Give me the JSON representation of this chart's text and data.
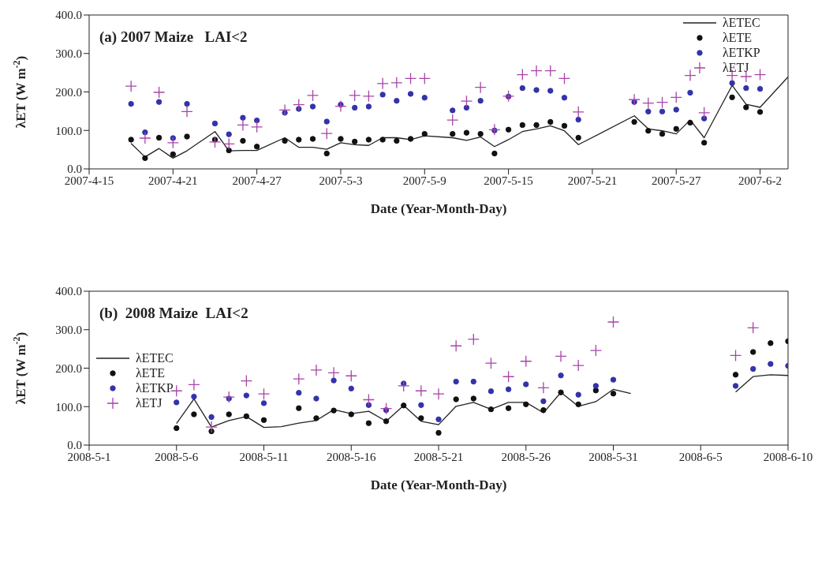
{
  "chart_data": [
    {
      "type": "line",
      "title": "(a) 2007 Maize   LAI<2",
      "xlabel": "Date (Year-Month-Day)",
      "ylabel": "λET (W m$^{-2}$)",
      "xlim": [
        "2007-04-15",
        "2007-06-04"
      ],
      "xticks": [
        {
          "value": "2007-04-15",
          "label": "2007-4-15"
        },
        {
          "value": "2007-04-21",
          "label": "2007-4-21"
        },
        {
          "value": "2007-04-27",
          "label": "2007-4-27"
        },
        {
          "value": "2007-05-03",
          "label": "2007-5-3"
        },
        {
          "value": "2007-05-09",
          "label": "2007-5-9"
        },
        {
          "value": "2007-05-15",
          "label": "2007-5-15"
        },
        {
          "value": "2007-05-21",
          "label": "2007-5-21"
        },
        {
          "value": "2007-05-27",
          "label": "2007-5-27"
        },
        {
          "value": "2007-06-02",
          "label": "2007-6-2"
        }
      ],
      "ylim": [
        0,
        400
      ],
      "yticks": [
        {
          "value": 0,
          "label": "0.0"
        },
        {
          "value": 100,
          "label": "100.0"
        },
        {
          "value": 200,
          "label": "200.0"
        },
        {
          "value": 300,
          "label": "300.0"
        },
        {
          "value": 400,
          "label": "400.0"
        }
      ],
      "grid": false,
      "legend": "top right",
      "series": [
        {
          "name": "λETEC",
          "type": "line",
          "color": "#222222",
          "marker": "none",
          "x": [
            "2007-04-18",
            "2007-04-19",
            "2007-04-20",
            "2007-04-21",
            "2007-04-22",
            "2007-04-24",
            "2007-04-25",
            "2007-04-26",
            "2007-04-27",
            "2007-04-29",
            "2007-04-30",
            "2007-05-01",
            "2007-05-02",
            "2007-05-03",
            "2007-05-04",
            "2007-05-05",
            "2007-05-06",
            "2007-05-07",
            "2007-05-08",
            "2007-05-09",
            "2007-05-11",
            "2007-05-12",
            "2007-05-13",
            "2007-05-14",
            "2007-05-15",
            "2007-05-16",
            "2007-05-17",
            "2007-05-18",
            "2007-05-19",
            "2007-05-20",
            "2007-05-24",
            "2007-05-25",
            "2007-05-26",
            "2007-05-27",
            "2007-05-28",
            "2007-05-29",
            "2007-05-31",
            "2007-06-01",
            "2007-06-02",
            "2007-06-04"
          ],
          "values": [
            66,
            31,
            53,
            28,
            47,
            97,
            47,
            48,
            48,
            81,
            56,
            56,
            51,
            68,
            63,
            61,
            81,
            81,
            76,
            86,
            81,
            74,
            83,
            58,
            76,
            97,
            104,
            112,
            99,
            63,
            138,
            104,
            99,
            91,
            127,
            81,
            217,
            168,
            160,
            239
          ]
        },
        {
          "name": "λETE",
          "type": "scatter",
          "color": "#111111",
          "marker": "circle",
          "x": [
            "2007-04-18",
            "2007-04-19",
            "2007-04-20",
            "2007-04-21",
            "2007-04-22",
            "2007-04-24",
            "2007-04-25",
            "2007-04-26",
            "2007-04-27",
            "2007-04-29",
            "2007-04-30",
            "2007-05-01",
            "2007-05-02",
            "2007-05-03",
            "2007-05-04",
            "2007-05-05",
            "2007-05-06",
            "2007-05-07",
            "2007-05-08",
            "2007-05-09",
            "2007-05-11",
            "2007-05-12",
            "2007-05-13",
            "2007-05-14",
            "2007-05-15",
            "2007-05-16",
            "2007-05-17",
            "2007-05-18",
            "2007-05-19",
            "2007-05-20",
            "2007-05-24",
            "2007-05-25",
            "2007-05-26",
            "2007-05-27",
            "2007-05-28",
            "2007-05-29",
            "2007-05-31",
            "2007-06-01",
            "2007-06-02"
          ],
          "values": [
            76,
            28,
            81,
            38,
            84,
            76,
            48,
            73,
            58,
            73,
            76,
            78,
            40,
            78,
            71,
            76,
            76,
            73,
            78,
            91,
            91,
            94,
            91,
            40,
            102,
            114,
            114,
            122,
            112,
            81,
            122,
            99,
            91,
            104,
            120,
            68,
            186,
            160,
            148
          ]
        },
        {
          "name": "λETKP",
          "type": "scatter",
          "color": "#3333aa",
          "marker": "circle",
          "x": [
            "2007-04-18",
            "2007-04-19",
            "2007-04-20",
            "2007-04-21",
            "2007-04-22",
            "2007-04-24",
            "2007-04-25",
            "2007-04-26",
            "2007-04-27",
            "2007-04-29",
            "2007-04-30",
            "2007-05-01",
            "2007-05-02",
            "2007-05-03",
            "2007-05-04",
            "2007-05-05",
            "2007-05-06",
            "2007-05-07",
            "2007-05-08",
            "2007-05-09",
            "2007-05-11",
            "2007-05-12",
            "2007-05-13",
            "2007-05-14",
            "2007-05-15",
            "2007-05-16",
            "2007-05-17",
            "2007-05-18",
            "2007-05-19",
            "2007-05-20",
            "2007-05-24",
            "2007-05-25",
            "2007-05-26",
            "2007-05-27",
            "2007-05-28",
            "2007-05-29",
            "2007-05-31",
            "2007-06-01",
            "2007-06-02"
          ],
          "values": [
            169,
            95,
            174,
            80,
            169,
            118,
            90,
            133,
            126,
            146,
            156,
            162,
            123,
            167,
            159,
            162,
            193,
            177,
            195,
            185,
            152,
            159,
            177,
            100,
            188,
            210,
            205,
            203,
            185,
            128,
            174,
            149,
            149,
            154,
            198,
            131,
            223,
            210,
            208
          ]
        },
        {
          "name": "λETJ",
          "type": "scatter",
          "color": "#a844a8",
          "marker": "cross",
          "x": [
            "2007-04-18",
            "2007-04-19",
            "2007-04-20",
            "2007-04-21",
            "2007-04-22",
            "2007-04-24",
            "2007-04-25",
            "2007-04-26",
            "2007-04-27",
            "2007-04-29",
            "2007-04-30",
            "2007-05-01",
            "2007-05-02",
            "2007-05-03",
            "2007-05-04",
            "2007-05-05",
            "2007-05-06",
            "2007-05-07",
            "2007-05-08",
            "2007-05-09",
            "2007-05-11",
            "2007-05-12",
            "2007-05-13",
            "2007-05-14",
            "2007-05-15",
            "2007-05-16",
            "2007-05-17",
            "2007-05-18",
            "2007-05-19",
            "2007-05-20",
            "2007-05-24",
            "2007-05-25",
            "2007-05-26",
            "2007-05-27",
            "2007-05-28",
            "2007-05-29",
            "2007-05-31",
            "2007-06-01",
            "2007-06-02"
          ],
          "values": [
            215,
            80,
            199,
            68,
            149,
            70,
            65,
            114,
            109,
            153,
            167,
            191,
            92,
            163,
            191,
            189,
            222,
            224,
            235,
            235,
            127,
            176,
            212,
            102,
            189,
            245,
            255,
            255,
            235,
            148,
            180,
            171,
            173,
            186,
            243,
            146,
            243,
            240,
            245
          ]
        }
      ]
    },
    {
      "type": "line",
      "title": "(b)  2008 Maize  LAI<2",
      "xlabel": "Date (Year-Month-Day)",
      "ylabel": "λET (W m$^{-2}$)",
      "xlim": [
        "2008-05-01",
        "2008-06-10"
      ],
      "xticks": [
        {
          "value": "2008-05-01",
          "label": "2008-5-1"
        },
        {
          "value": "2008-05-06",
          "label": "2008-5-6"
        },
        {
          "value": "2008-05-11",
          "label": "2008-5-11"
        },
        {
          "value": "2008-05-16",
          "label": "2008-5-16"
        },
        {
          "value": "2008-05-21",
          "label": "2008-5-21"
        },
        {
          "value": "2008-05-26",
          "label": "2008-5-26"
        },
        {
          "value": "2008-05-31",
          "label": "2008-5-31"
        },
        {
          "value": "2008-06-05",
          "label": "2008-6-5"
        },
        {
          "value": "2008-06-10",
          "label": "2008-6-10"
        }
      ],
      "ylim": [
        0,
        400
      ],
      "yticks": [
        {
          "value": 0,
          "label": "0.0"
        },
        {
          "value": 100,
          "label": "100.0"
        },
        {
          "value": 200,
          "label": "200.0"
        },
        {
          "value": 300,
          "label": "300.0"
        },
        {
          "value": 400,
          "label": "400.0"
        }
      ],
      "grid": false,
      "legend": "left",
      "series": [
        {
          "name": "λETEC",
          "type": "line",
          "color": "#222222",
          "marker": "none",
          "x": [
            "2008-05-06",
            "2008-05-07",
            "2008-05-08",
            "2008-05-09",
            "2008-05-10",
            "2008-05-11",
            "2008-05-12",
            "2008-05-13",
            "2008-05-14",
            "2008-05-15",
            "2008-05-16",
            "2008-05-17",
            "2008-05-18",
            "2008-05-19",
            "2008-05-20",
            "2008-05-21",
            "2008-05-22",
            "2008-05-23",
            "2008-05-24",
            "2008-05-25",
            "2008-05-26",
            "2008-05-27",
            "2008-05-28",
            "2008-05-29",
            "2008-05-30",
            "2008-05-31",
            "2008-06-01",
            "2008-06-04",
            "2008-06-07",
            "2008-06-08",
            "2008-06-09",
            "2008-06-10"
          ],
          "values": [
            56,
            120,
            47,
            64,
            74,
            46,
            48,
            57,
            64,
            92,
            82,
            88,
            62,
            103,
            62,
            53,
            101,
            111,
            93,
            111,
            111,
            84,
            137,
            101,
            113,
            145,
            134,
            null,
            138,
            178,
            183,
            181
          ]
        },
        {
          "name": "λETE",
          "type": "scatter",
          "color": "#111111",
          "marker": "circle",
          "x": [
            "2008-05-06",
            "2008-05-07",
            "2008-05-08",
            "2008-05-09",
            "2008-05-10",
            "2008-05-11",
            "2008-05-13",
            "2008-05-14",
            "2008-05-15",
            "2008-05-16",
            "2008-05-17",
            "2008-05-18",
            "2008-05-19",
            "2008-05-20",
            "2008-05-21",
            "2008-05-22",
            "2008-05-23",
            "2008-05-24",
            "2008-05-25",
            "2008-05-26",
            "2008-05-27",
            "2008-05-28",
            "2008-05-29",
            "2008-05-30",
            "2008-05-31",
            "2008-06-07",
            "2008-06-08",
            "2008-06-09",
            "2008-06-10"
          ],
          "values": [
            44,
            80,
            36,
            80,
            75,
            65,
            96,
            70,
            90,
            80,
            57,
            62,
            103,
            70,
            32,
            119,
            121,
            93,
            96,
            106,
            91,
            137,
            106,
            142,
            134,
            183,
            242,
            265,
            270
          ]
        },
        {
          "name": "λETKP",
          "type": "scatter",
          "color": "#3333aa",
          "marker": "circle",
          "x": [
            "2008-05-06",
            "2008-05-07",
            "2008-05-08",
            "2008-05-09",
            "2008-05-10",
            "2008-05-11",
            "2008-05-13",
            "2008-05-14",
            "2008-05-15",
            "2008-05-16",
            "2008-05-17",
            "2008-05-18",
            "2008-05-19",
            "2008-05-20",
            "2008-05-21",
            "2008-05-22",
            "2008-05-23",
            "2008-05-24",
            "2008-05-25",
            "2008-05-26",
            "2008-05-27",
            "2008-05-28",
            "2008-05-29",
            "2008-05-30",
            "2008-05-31",
            "2008-06-07",
            "2008-06-08",
            "2008-06-09",
            "2008-06-10"
          ],
          "values": [
            111,
            126,
            73,
            121,
            129,
            109,
            136,
            121,
            168,
            147,
            104,
            91,
            160,
            104,
            67,
            165,
            165,
            140,
            145,
            158,
            114,
            181,
            131,
            154,
            170,
            154,
            198,
            211,
            206
          ]
        },
        {
          "name": "λETJ",
          "type": "scatter",
          "color": "#a844a8",
          "marker": "cross",
          "x": [
            "2008-05-06",
            "2008-05-07",
            "2008-05-08",
            "2008-05-09",
            "2008-05-10",
            "2008-05-11",
            "2008-05-13",
            "2008-05-14",
            "2008-05-15",
            "2008-05-16",
            "2008-05-17",
            "2008-05-18",
            "2008-05-19",
            "2008-05-20",
            "2008-05-21",
            "2008-05-22",
            "2008-05-23",
            "2008-05-24",
            "2008-05-25",
            "2008-05-26",
            "2008-05-27",
            "2008-05-28",
            "2008-05-29",
            "2008-05-30",
            "2008-05-31",
            "2008-06-07",
            "2008-06-08"
          ],
          "values": [
            141,
            157,
            47,
            125,
            167,
            133,
            172,
            195,
            188,
            180,
            118,
            95,
            154,
            141,
            133,
            258,
            275,
            213,
            178,
            218,
            149,
            231,
            207,
            246,
            320,
            233,
            305
          ]
        }
      ]
    }
  ]
}
